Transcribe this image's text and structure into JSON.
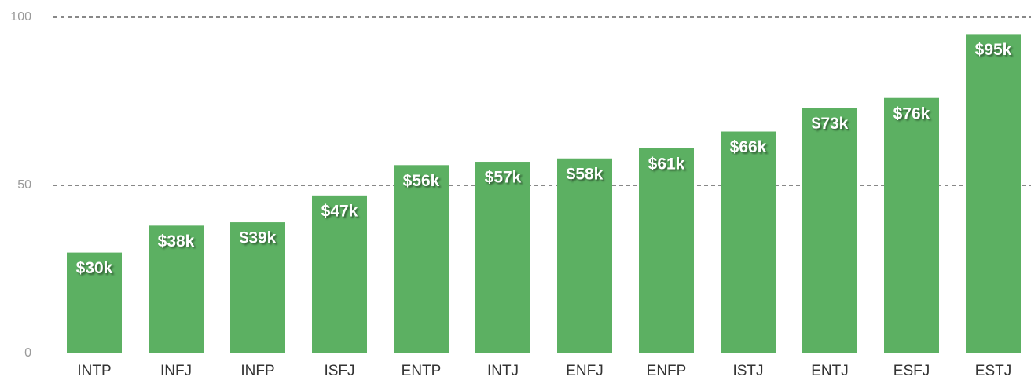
{
  "chart_data": {
    "type": "bar",
    "categories": [
      "INTP",
      "INFJ",
      "INFP",
      "ISFJ",
      "ENTP",
      "INTJ",
      "ENFJ",
      "ENFP",
      "ISTJ",
      "ENTJ",
      "ESFJ",
      "ESTJ"
    ],
    "values": [
      30,
      38,
      39,
      47,
      56,
      57,
      58,
      61,
      66,
      73,
      76,
      95
    ],
    "value_labels": [
      "$30k",
      "$38k",
      "$39k",
      "$47k",
      "$56k",
      "$57k",
      "$58k",
      "$61k",
      "$66k",
      "$73k",
      "$76k",
      "$95k"
    ],
    "color": "#5cb062",
    "ylim": [
      0,
      100
    ],
    "yticks": [
      0,
      50,
      100
    ],
    "grid": true
  }
}
